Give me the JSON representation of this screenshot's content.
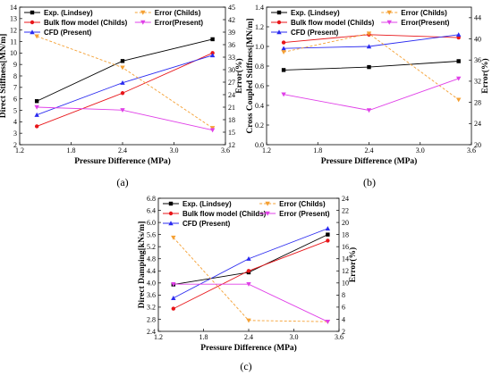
{
  "chart_data": [
    {
      "type": "line",
      "panel_label": "(a)",
      "xlabel": "Pressure Difference (MPa)",
      "ylabel": "Direct Stiffness[MN/m]",
      "y2label": "Error(%)",
      "xlim": [
        1.2,
        3.6
      ],
      "ylim": [
        2,
        14
      ],
      "y2lim": [
        12,
        45
      ],
      "xticks": [
        "1.2",
        "1.8",
        "2.4",
        "3.0",
        "3.6"
      ],
      "yticks": [
        "2",
        "3",
        "4",
        "5",
        "6",
        "7",
        "8",
        "9",
        "10",
        "11",
        "12",
        "13",
        "14"
      ],
      "y2ticks": [
        "12",
        "15",
        "18",
        "21",
        "24",
        "27",
        "30",
        "33",
        "36",
        "39",
        "42",
        "45"
      ],
      "legend_position": "top-left / top-right",
      "series": [
        {
          "name": "Exp. (Lindsey)",
          "axis": "left",
          "color": "#000000",
          "marker": "square",
          "dash": "solid",
          "x": [
            1.4,
            2.4,
            3.45
          ],
          "y": [
            5.8,
            9.3,
            11.2
          ]
        },
        {
          "name": "Bulk flow model (Childs)",
          "axis": "left",
          "color": "#e8161a",
          "marker": "circle",
          "dash": "solid",
          "x": [
            1.4,
            2.4,
            3.45
          ],
          "y": [
            3.6,
            6.5,
            10.0
          ]
        },
        {
          "name": "CFD (Present)",
          "axis": "left",
          "color": "#2b2bf0",
          "marker": "triangle",
          "dash": "solid",
          "x": [
            1.4,
            2.4,
            3.45
          ],
          "y": [
            4.6,
            7.4,
            9.8
          ]
        },
        {
          "name": "Error (Childs)",
          "axis": "right",
          "color": "#f5a033",
          "marker": "triangle-down",
          "dash": "dash",
          "x": [
            1.4,
            2.4,
            3.45
          ],
          "y": [
            38.0,
            30.5,
            16.0
          ]
        },
        {
          "name": "Error(Present)",
          "axis": "right",
          "color": "#e040e8",
          "marker": "triangle-down",
          "dash": "solid",
          "x": [
            1.4,
            2.4,
            3.45
          ],
          "y": [
            21.0,
            20.3,
            15.5
          ]
        }
      ]
    },
    {
      "type": "line",
      "panel_label": "(b)",
      "xlabel": "Pressure Difference (MPa)",
      "ylabel": "Cross Coupled Stiffness[MN/m]",
      "y2label": "Error(%)",
      "xlim": [
        1.2,
        3.6
      ],
      "ylim": [
        0.0,
        1.4
      ],
      "y2lim": [
        20,
        46
      ],
      "xticks": [
        "1.2",
        "1.8",
        "2.4",
        "3.0",
        "3.6"
      ],
      "yticks": [
        "0.0",
        "0.2",
        "0.4",
        "0.6",
        "0.8",
        "1.0",
        "1.2",
        "1.4"
      ],
      "y2ticks": [
        "20",
        "24",
        "28",
        "32",
        "36",
        "40",
        "44"
      ],
      "legend_position": "top-left / top-right",
      "series": [
        {
          "name": "Exp. (Lindsey)",
          "axis": "left",
          "color": "#000000",
          "marker": "square",
          "dash": "solid",
          "x": [
            1.4,
            2.4,
            3.45
          ],
          "y": [
            0.76,
            0.79,
            0.85
          ]
        },
        {
          "name": "Bulk flow model (Childs)",
          "axis": "left",
          "color": "#e8161a",
          "marker": "circle",
          "dash": "solid",
          "x": [
            1.4,
            2.4,
            3.45
          ],
          "y": [
            1.04,
            1.12,
            1.09
          ]
        },
        {
          "name": "CFD (Present)",
          "axis": "left",
          "color": "#2b2bf0",
          "marker": "triangle",
          "dash": "solid",
          "x": [
            1.4,
            2.4,
            3.45
          ],
          "y": [
            0.98,
            1.0,
            1.12
          ]
        },
        {
          "name": "Error (Childs)",
          "axis": "right",
          "color": "#f5a033",
          "marker": "triangle-down",
          "dash": "dash",
          "x": [
            1.4,
            2.4,
            3.45
          ],
          "y": [
            37.5,
            41.0,
            28.5
          ]
        },
        {
          "name": "Error(Present)",
          "axis": "right",
          "color": "#e040e8",
          "marker": "triangle-down",
          "dash": "solid",
          "x": [
            1.4,
            2.4,
            3.45
          ],
          "y": [
            29.5,
            26.5,
            32.5
          ]
        }
      ]
    },
    {
      "type": "line",
      "panel_label": "(c)",
      "xlabel": "Pressure Difference (MPa)",
      "ylabel": "Direct Damping[kNs/m]",
      "y2label": "Error(%)",
      "xlim": [
        1.2,
        3.6
      ],
      "ylim": [
        2.4,
        6.8
      ],
      "y2lim": [
        2,
        24
      ],
      "xticks": [
        "1.2",
        "1.8",
        "2.4",
        "3.0",
        "3.6"
      ],
      "yticks": [
        "2.4",
        "2.8",
        "3.2",
        "3.6",
        "4.0",
        "4.4",
        "4.8",
        "5.2",
        "5.6",
        "6.0",
        "6.4",
        "6.8"
      ],
      "y2ticks": [
        "2",
        "4",
        "6",
        "8",
        "10",
        "12",
        "14",
        "16",
        "18",
        "20",
        "22",
        "24"
      ],
      "legend_position": "top-left / top-right",
      "series": [
        {
          "name": "Exp. (Lindsey)",
          "axis": "left",
          "color": "#000000",
          "marker": "square",
          "dash": "solid",
          "x": [
            1.4,
            2.4,
            3.45
          ],
          "y": [
            3.95,
            4.35,
            5.6
          ]
        },
        {
          "name": "Bulk flow model (Childs)",
          "axis": "left",
          "color": "#e8161a",
          "marker": "circle",
          "dash": "solid",
          "x": [
            1.4,
            2.4,
            3.45
          ],
          "y": [
            3.15,
            4.4,
            5.4
          ]
        },
        {
          "name": "CFD (Present)",
          "axis": "left",
          "color": "#2b2bf0",
          "marker": "triangle",
          "dash": "solid",
          "x": [
            1.4,
            2.4,
            3.45
          ],
          "y": [
            3.5,
            4.8,
            5.8
          ]
        },
        {
          "name": "Error (Childs)",
          "axis": "right",
          "color": "#f5a033",
          "marker": "triangle-down",
          "dash": "dash",
          "x": [
            1.4,
            2.4,
            3.45
          ],
          "y": [
            17.5,
            3.8,
            3.6
          ]
        },
        {
          "name": "Error (Present)",
          "axis": "right",
          "color": "#e040e8",
          "marker": "triangle-down",
          "dash": "solid",
          "x": [
            1.4,
            2.4,
            3.45
          ],
          "y": [
            9.8,
            9.8,
            3.6
          ]
        }
      ]
    }
  ]
}
